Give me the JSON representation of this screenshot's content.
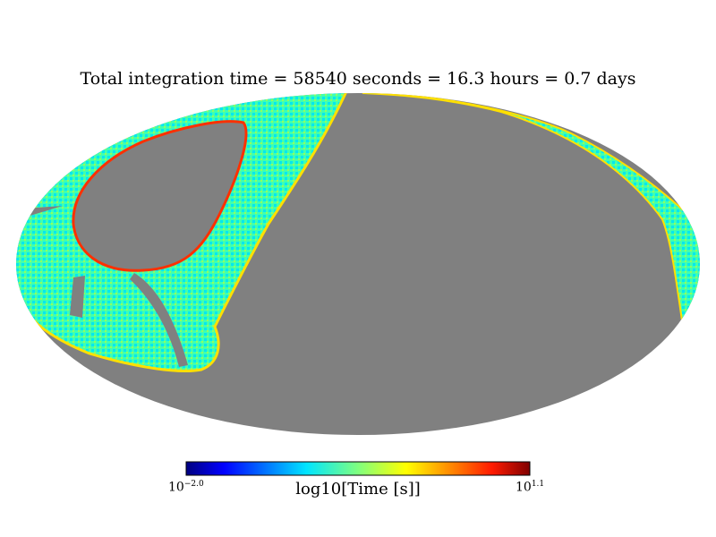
{
  "chart_data": {
    "type": "heatmap",
    "projection": "mollweide",
    "title": "Total integration time = 58540 seconds = 16.3 hours = 0.7 days",
    "colorbar": {
      "label": "log10[Time [s]]",
      "min_base": "10",
      "min_exp": "−2.0",
      "max_base": "10",
      "max_exp": "1.1",
      "vmin": -2.0,
      "vmax": 1.1,
      "colormap": "jet"
    },
    "colors": {
      "unseen": "#808080",
      "low": "#00ffff",
      "mid": "#7fff7f",
      "high": "#ff0000"
    }
  }
}
